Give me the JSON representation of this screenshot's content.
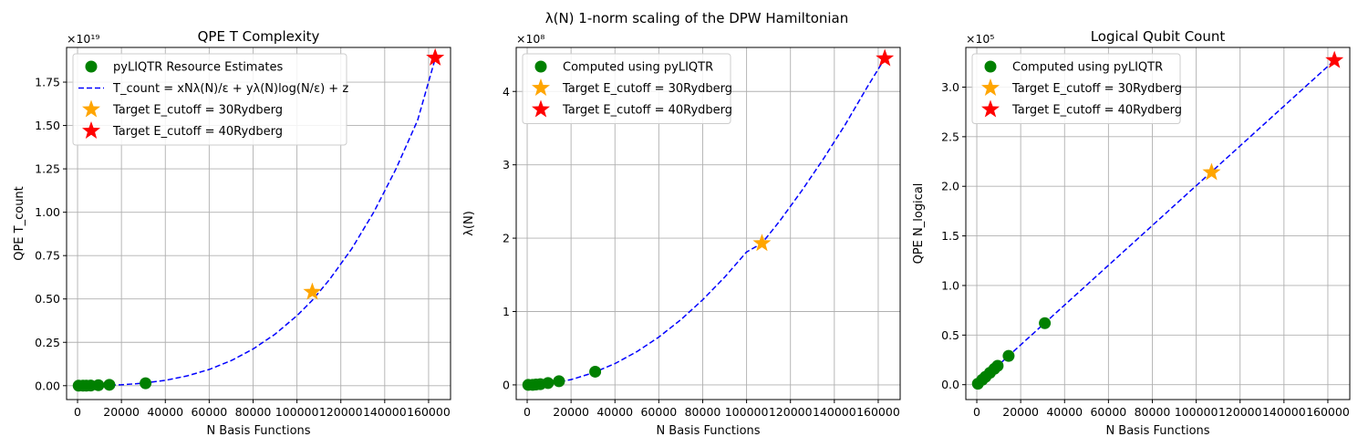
{
  "figure": {
    "suptitle": "λ(N) 1-norm scaling of the DPW Hamiltonian"
  },
  "chart_data": [
    {
      "type": "scatter",
      "title": "QPE T Complexity",
      "xlabel": "N Basis Functions",
      "ylabel": "QPE T_count",
      "offset_label": "×10¹⁹",
      "scale": 1e+19,
      "xlim": [
        -5000,
        170000
      ],
      "ylim": [
        -0.08,
        1.95
      ],
      "xticks": [
        0,
        20000,
        40000,
        60000,
        80000,
        100000,
        120000,
        140000,
        160000
      ],
      "xtick_labels": [
        "0",
        "20000",
        "40000",
        "60000",
        "80000",
        "100000",
        "120000",
        "140000",
        "160000"
      ],
      "yticks": [
        0,
        0.25,
        0.5,
        0.75,
        1.0,
        1.25,
        1.5,
        1.75
      ],
      "ytick_labels": [
        "0.00",
        "0.25",
        "0.50",
        "0.75",
        "1.00",
        "1.25",
        "1.50",
        "1.75"
      ],
      "grid": true,
      "legend_position": "upper-left",
      "points": {
        "name": "pyLIQTR Resource Estimates",
        "color": "#008000",
        "x": [
          500,
          2500,
          4000,
          6000,
          9500,
          14500,
          31000
        ],
        "y": [
          0.0,
          0.0,
          0.0,
          0.001,
          0.003,
          0.005,
          0.014
        ]
      },
      "fit": {
        "name": "T_count = xNλ(N)/ε + yλ(N)log(N/ε) + z",
        "color": "#0000ff",
        "x": [
          0,
          10000,
          20000,
          30000,
          40000,
          50000,
          60000,
          70000,
          80000,
          90000,
          100000,
          107000,
          115000,
          125000,
          135000,
          145000,
          155000,
          163000
        ],
        "y": [
          0.0,
          0.0013,
          0.0052,
          0.0144,
          0.0308,
          0.0565,
          0.0935,
          0.1443,
          0.2114,
          0.2968,
          0.4035,
          0.4923,
          0.6144,
          0.79,
          1.0,
          1.246,
          1.53,
          1.885
        ]
      },
      "stars": [
        {
          "name": "Target E_cutoff = 30Rydberg",
          "color": "#ffa500",
          "x": 107000,
          "y": 0.54
        },
        {
          "name": "Target E_cutoff = 40Rydberg",
          "color": "#ff0000",
          "x": 163000,
          "y": 1.89
        }
      ],
      "legend": {
        "points": "pyLIQTR Resource Estimates",
        "fit": "T_count = xNλ(N)/ε + yλ(N)log(N/ε) + z",
        "star30": "Target E_cutoff = 30Rydberg",
        "star40": "Target E_cutoff = 40Rydberg"
      }
    },
    {
      "type": "scatter",
      "title": "",
      "xlabel": "N Basis Functions",
      "ylabel": "λ(N)",
      "offset_label": "×10⁸",
      "scale": 100000000.0,
      "xlim": [
        -5000,
        170000
      ],
      "ylim": [
        -0.2,
        4.6
      ],
      "xticks": [
        0,
        20000,
        40000,
        60000,
        80000,
        100000,
        120000,
        140000,
        160000
      ],
      "xtick_labels": [
        "0",
        "20000",
        "40000",
        "60000",
        "80000",
        "100000",
        "120000",
        "140000",
        "160000"
      ],
      "yticks": [
        0,
        1,
        2,
        3,
        4
      ],
      "ytick_labels": [
        "0",
        "1",
        "2",
        "3",
        "4"
      ],
      "grid": true,
      "legend_position": "upper-left",
      "points": {
        "name": "Computed using pyLIQTR",
        "color": "#008000",
        "x": [
          500,
          2500,
          4000,
          6000,
          9500,
          14500,
          31000
        ],
        "y": [
          0.0,
          0.0,
          0.005,
          0.01,
          0.025,
          0.05,
          0.18
        ]
      },
      "fit": {
        "name": "",
        "color": "#0000ff",
        "x": [
          0,
          10000,
          20000,
          30000,
          40000,
          50000,
          60000,
          70000,
          80000,
          90000,
          100000,
          107000,
          115000,
          125000,
          135000,
          145000,
          155000,
          163000
        ],
        "y": [
          0.0,
          0.016,
          0.072,
          0.164,
          0.29,
          0.453,
          0.652,
          0.888,
          1.16,
          1.468,
          1.812,
          1.93,
          2.23,
          2.64,
          3.08,
          3.55,
          4.06,
          4.45
        ]
      },
      "stars": [
        {
          "name": "Target E_cutoff = 30Rydberg",
          "color": "#ffa500",
          "x": 107000,
          "y": 1.93
        },
        {
          "name": "Target E_cutoff = 40Rydberg",
          "color": "#ff0000",
          "x": 163000,
          "y": 4.45
        }
      ],
      "legend": {
        "points": "Computed using pyLIQTR",
        "star30": "Target E_cutoff = 30Rydberg",
        "star40": "Target E_cutoff = 40Rydberg"
      }
    },
    {
      "type": "scatter",
      "title": "Logical Qubit Count",
      "xlabel": "N Basis Functions",
      "ylabel": "QPE N_logical",
      "offset_label": "×10⁵",
      "scale": 100000.0,
      "xlim": [
        -5000,
        170000
      ],
      "ylim": [
        -0.15,
        3.4
      ],
      "xticks": [
        0,
        20000,
        40000,
        60000,
        80000,
        100000,
        120000,
        140000,
        160000
      ],
      "xtick_labels": [
        "0",
        "20000",
        "40000",
        "60000",
        "80000",
        "100000",
        "120000",
        "140000",
        "160000"
      ],
      "yticks": [
        0,
        0.5,
        1.0,
        1.5,
        2.0,
        2.5,
        3.0
      ],
      "ytick_labels": [
        "0.0",
        "0.5",
        "1.0",
        "1.5",
        "2.0",
        "2.5",
        "3.0"
      ],
      "grid": true,
      "legend_position": "upper-left",
      "points": {
        "name": "Computed using pyLIQTR",
        "color": "#008000",
        "x": [
          500,
          2500,
          4000,
          6000,
          8000,
          9500,
          14500,
          31000
        ],
        "y": [
          0.01,
          0.05,
          0.08,
          0.12,
          0.16,
          0.19,
          0.29,
          0.62
        ]
      },
      "fit": {
        "name": "",
        "color": "#0000ff",
        "x": [
          0,
          163000
        ],
        "y": [
          0.0,
          3.27
        ]
      },
      "stars": [
        {
          "name": "Target E_cutoff = 30Rydberg",
          "color": "#ffa500",
          "x": 107000,
          "y": 2.14
        },
        {
          "name": "Target E_cutoff = 40Rydberg",
          "color": "#ff0000",
          "x": 163000,
          "y": 3.27
        }
      ],
      "legend": {
        "points": "Computed using pyLIQTR",
        "star30": "Target E_cutoff = 30Rydberg",
        "star40": "Target E_cutoff = 40Rydberg"
      }
    }
  ]
}
